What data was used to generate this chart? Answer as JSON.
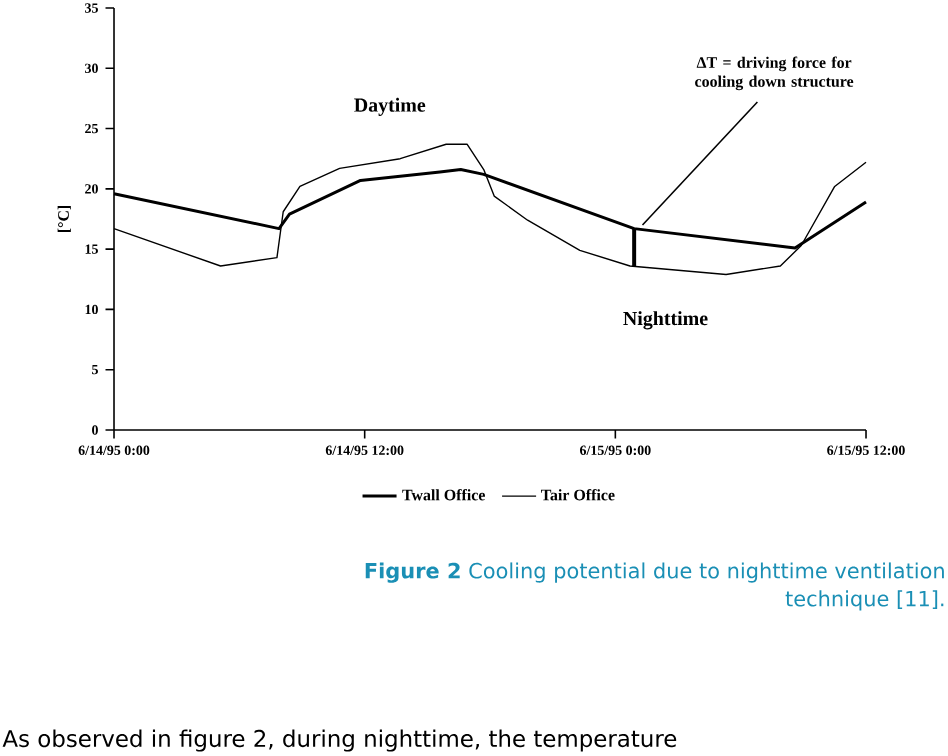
{
  "chart_data": {
    "type": "line",
    "ylabel": "[°C]",
    "xlim": [
      "1995-06-14T00:00",
      "1995-06-15T12:00"
    ],
    "ylim": [
      0,
      35
    ],
    "xticks": [
      {
        "value": "1995-06-14T00:00",
        "label": "6/14/95 0:00"
      },
      {
        "value": "1995-06-14T12:00",
        "label": "6/14/95 12:00"
      },
      {
        "value": "1995-06-15T00:00",
        "label": "6/15/95 0:00"
      },
      {
        "value": "1995-06-15T12:00",
        "label": "6/15/95 12:00"
      }
    ],
    "yticks": [
      0,
      5,
      10,
      15,
      20,
      25,
      30,
      35
    ],
    "grid": false,
    "legend": "bottom",
    "marker": "none",
    "line_style": "solid",
    "series": [
      {
        "name": "Twall Office",
        "color": "#000000",
        "x": [
          "1995-06-14T00:00",
          "1995-06-14T07:54",
          "1995-06-14T08:24",
          "1995-06-14T11:48",
          "1995-06-14T15:36",
          "1995-06-14T16:36",
          "1995-06-14T17:42",
          "1995-06-15T00:54",
          "1995-06-15T08:36",
          "1995-06-15T12:00"
        ],
        "values": [
          19.6,
          16.7,
          17.9,
          20.7,
          21.4,
          21.6,
          21.2,
          16.7,
          15.1,
          18.9
        ]
      },
      {
        "name": "Tair Office",
        "color": "#000000",
        "x": [
          "1995-06-14T00:00",
          "1995-06-14T05:06",
          "1995-06-14T07:48",
          "1995-06-14T08:06",
          "1995-06-14T08:54",
          "1995-06-14T10:48",
          "1995-06-14T13:42",
          "1995-06-14T15:54",
          "1995-06-14T16:54",
          "1995-06-14T17:42",
          "1995-06-14T18:12",
          "1995-06-14T19:48",
          "1995-06-14T22:18",
          "1995-06-15T00:42",
          "1995-06-15T05:18",
          "1995-06-15T07:54",
          "1995-06-15T08:54",
          "1995-06-15T10:30",
          "1995-06-15T12:00"
        ],
        "values": [
          16.7,
          13.6,
          14.3,
          18.1,
          20.2,
          21.7,
          22.5,
          23.7,
          23.7,
          21.6,
          19.4,
          17.4,
          14.9,
          13.6,
          12.9,
          13.6,
          15.3,
          20.2,
          22.2
        ]
      }
    ],
    "annotations": [
      "Daytime",
      "Nighttime",
      {
        "text": "ΔT = driving force for cooling down structure",
        "x": "1995-06-15T00:54",
        "y": 16.7
      },
      "**Figure 2** Cooling potential due to nighttime ventilation technique [11].",
      "As observed in figure 2, during nighttime, the temperature"
    ]
  }
}
